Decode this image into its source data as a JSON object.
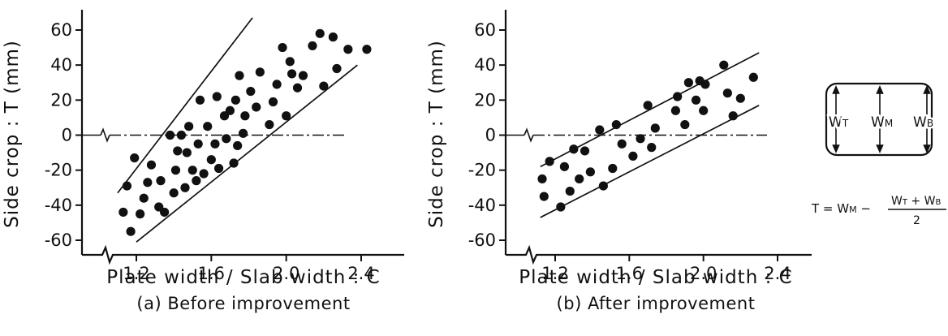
{
  "chart_data": [
    {
      "type": "scatter",
      "caption": "(a) Before improvement",
      "xlabel": "Plate width / Slab width : C",
      "ylabel": "Side crop : T (mm)",
      "xlim": [
        1.0,
        2.5
      ],
      "ylim": [
        -70,
        70
      ],
      "xticks": [
        1.2,
        1.6,
        2.0,
        2.4
      ],
      "xtick_labels": [
        "1.2",
        "1.6",
        "2.0",
        "2.4"
      ],
      "yticks": [
        60,
        40,
        20,
        0,
        -20,
        -40,
        -60
      ],
      "ytick_labels": [
        "60",
        "40",
        "20",
        "0",
        "-20",
        "-40",
        "-60"
      ],
      "grid": false,
      "reference_line": {
        "y": 0,
        "style": "dash-dot"
      },
      "band_lines": [
        {
          "x": [
            1.1,
            1.82
          ],
          "y": [
            -33,
            67
          ]
        },
        {
          "x": [
            1.2,
            2.38
          ],
          "y": [
            -61,
            40
          ]
        }
      ],
      "points": [
        {
          "x": 1.13,
          "y": -44
        },
        {
          "x": 1.15,
          "y": -29
        },
        {
          "x": 1.17,
          "y": -55
        },
        {
          "x": 1.19,
          "y": -13
        },
        {
          "x": 1.22,
          "y": -45
        },
        {
          "x": 1.24,
          "y": -36
        },
        {
          "x": 1.26,
          "y": -27
        },
        {
          "x": 1.28,
          "y": -17
        },
        {
          "x": 1.32,
          "y": -41
        },
        {
          "x": 1.33,
          "y": -26
        },
        {
          "x": 1.35,
          "y": -44
        },
        {
          "x": 1.38,
          "y": 0
        },
        {
          "x": 1.4,
          "y": -33
        },
        {
          "x": 1.41,
          "y": -20
        },
        {
          "x": 1.42,
          "y": -9
        },
        {
          "x": 1.44,
          "y": 0
        },
        {
          "x": 1.46,
          "y": -30
        },
        {
          "x": 1.47,
          "y": -10
        },
        {
          "x": 1.48,
          "y": 5
        },
        {
          "x": 1.5,
          "y": -20
        },
        {
          "x": 1.52,
          "y": -26
        },
        {
          "x": 1.53,
          "y": -5
        },
        {
          "x": 1.54,
          "y": 20
        },
        {
          "x": 1.56,
          "y": -22
        },
        {
          "x": 1.58,
          "y": 5
        },
        {
          "x": 1.6,
          "y": -14
        },
        {
          "x": 1.62,
          "y": -5
        },
        {
          "x": 1.63,
          "y": 22
        },
        {
          "x": 1.64,
          "y": -19
        },
        {
          "x": 1.67,
          "y": 11
        },
        {
          "x": 1.68,
          "y": -2
        },
        {
          "x": 1.7,
          "y": 14
        },
        {
          "x": 1.72,
          "y": -16
        },
        {
          "x": 1.73,
          "y": 20
        },
        {
          "x": 1.74,
          "y": -6
        },
        {
          "x": 1.75,
          "y": 34
        },
        {
          "x": 1.77,
          "y": 1
        },
        {
          "x": 1.78,
          "y": 11
        },
        {
          "x": 1.81,
          "y": 25
        },
        {
          "x": 1.84,
          "y": 16
        },
        {
          "x": 1.86,
          "y": 36
        },
        {
          "x": 1.91,
          "y": 6
        },
        {
          "x": 1.93,
          "y": 19
        },
        {
          "x": 1.95,
          "y": 29
        },
        {
          "x": 1.98,
          "y": 50
        },
        {
          "x": 2.0,
          "y": 11
        },
        {
          "x": 2.02,
          "y": 42
        },
        {
          "x": 2.03,
          "y": 35
        },
        {
          "x": 2.06,
          "y": 27
        },
        {
          "x": 2.09,
          "y": 34
        },
        {
          "x": 2.14,
          "y": 51
        },
        {
          "x": 2.18,
          "y": 58
        },
        {
          "x": 2.2,
          "y": 28
        },
        {
          "x": 2.25,
          "y": 56
        },
        {
          "x": 2.27,
          "y": 38
        },
        {
          "x": 2.33,
          "y": 49
        },
        {
          "x": 2.43,
          "y": 49
        }
      ]
    },
    {
      "type": "scatter",
      "caption": "(b) After improvement",
      "xlabel": "Plate width / Slab width : C",
      "ylabel": "Side crop : T (mm)",
      "xlim": [
        1.0,
        2.5
      ],
      "ylim": [
        -70,
        70
      ],
      "xticks": [
        1.2,
        1.6,
        2.0,
        2.4
      ],
      "xtick_labels": [
        "1.2",
        "1.6",
        "2.0",
        "2.4"
      ],
      "yticks": [
        60,
        40,
        20,
        0,
        -20,
        -40,
        -60
      ],
      "ytick_labels": [
        "60",
        "40",
        "20",
        "0",
        "-20",
        "-40",
        "-60"
      ],
      "grid": false,
      "reference_line": {
        "y": 0,
        "style": "dash-dot"
      },
      "band_lines": [
        {
          "x": [
            1.12,
            2.3
          ],
          "y": [
            -18,
            47
          ]
        },
        {
          "x": [
            1.12,
            2.3
          ],
          "y": [
            -47,
            17
          ]
        }
      ],
      "points": [
        {
          "x": 1.13,
          "y": -25
        },
        {
          "x": 1.14,
          "y": -35
        },
        {
          "x": 1.17,
          "y": -15
        },
        {
          "x": 1.23,
          "y": -41
        },
        {
          "x": 1.25,
          "y": -18
        },
        {
          "x": 1.28,
          "y": -32
        },
        {
          "x": 1.3,
          "y": -8
        },
        {
          "x": 1.33,
          "y": -25
        },
        {
          "x": 1.36,
          "y": -9
        },
        {
          "x": 1.39,
          "y": -21
        },
        {
          "x": 1.44,
          "y": 3
        },
        {
          "x": 1.46,
          "y": -29
        },
        {
          "x": 1.51,
          "y": -19
        },
        {
          "x": 1.53,
          "y": 6
        },
        {
          "x": 1.56,
          "y": -5
        },
        {
          "x": 1.62,
          "y": -12
        },
        {
          "x": 1.66,
          "y": -2
        },
        {
          "x": 1.7,
          "y": 17
        },
        {
          "x": 1.72,
          "y": -7
        },
        {
          "x": 1.74,
          "y": 4
        },
        {
          "x": 1.85,
          "y": 14
        },
        {
          "x": 1.86,
          "y": 22
        },
        {
          "x": 1.9,
          "y": 6
        },
        {
          "x": 1.92,
          "y": 30
        },
        {
          "x": 1.96,
          "y": 20
        },
        {
          "x": 1.98,
          "y": 31
        },
        {
          "x": 2.0,
          "y": 14
        },
        {
          "x": 2.01,
          "y": 29
        },
        {
          "x": 2.11,
          "y": 40
        },
        {
          "x": 2.13,
          "y": 24
        },
        {
          "x": 2.16,
          "y": 11
        },
        {
          "x": 2.2,
          "y": 21
        },
        {
          "x": 2.27,
          "y": 33
        }
      ]
    }
  ],
  "inset": {
    "labels": [
      "W",
      "W",
      "W"
    ],
    "subscripts": [
      "T",
      "M",
      "B"
    ],
    "formula_lhs": "T = W",
    "formula_lhs_sub": "M",
    "formula_num": "W",
    "formula_num_sub1": "T",
    "formula_num_mid": " + W",
    "formula_num_sub2": "B",
    "formula_den": "2"
  },
  "colors": {
    "ink": "#111111",
    "background": "#ffffff"
  }
}
